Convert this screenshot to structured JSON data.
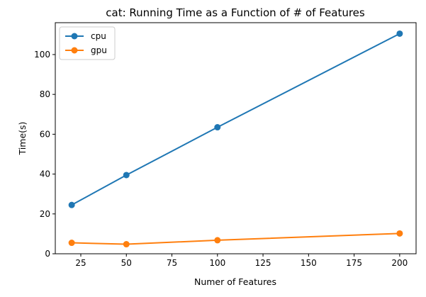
{
  "chart_data": {
    "type": "line",
    "title": "cat: Running Time as a Function of # of Features",
    "xlabel": "Numer of Features",
    "ylabel": "Time(s)",
    "x": [
      20,
      50,
      100,
      200
    ],
    "xlim": [
      11,
      209
    ],
    "ylim": [
      0,
      116
    ],
    "xticks": [
      25,
      50,
      75,
      100,
      125,
      150,
      175,
      200
    ],
    "yticks": [
      0,
      20,
      40,
      60,
      80,
      100
    ],
    "grid": false,
    "legend_position": "top-left",
    "series": [
      {
        "name": "cpu",
        "color": "#1f77b4",
        "values": [
          24.5,
          39.5,
          63.5,
          110.5
        ]
      },
      {
        "name": "gpu",
        "color": "#ff7f0e",
        "values": [
          5.5,
          4.8,
          6.8,
          10.2
        ]
      }
    ]
  }
}
